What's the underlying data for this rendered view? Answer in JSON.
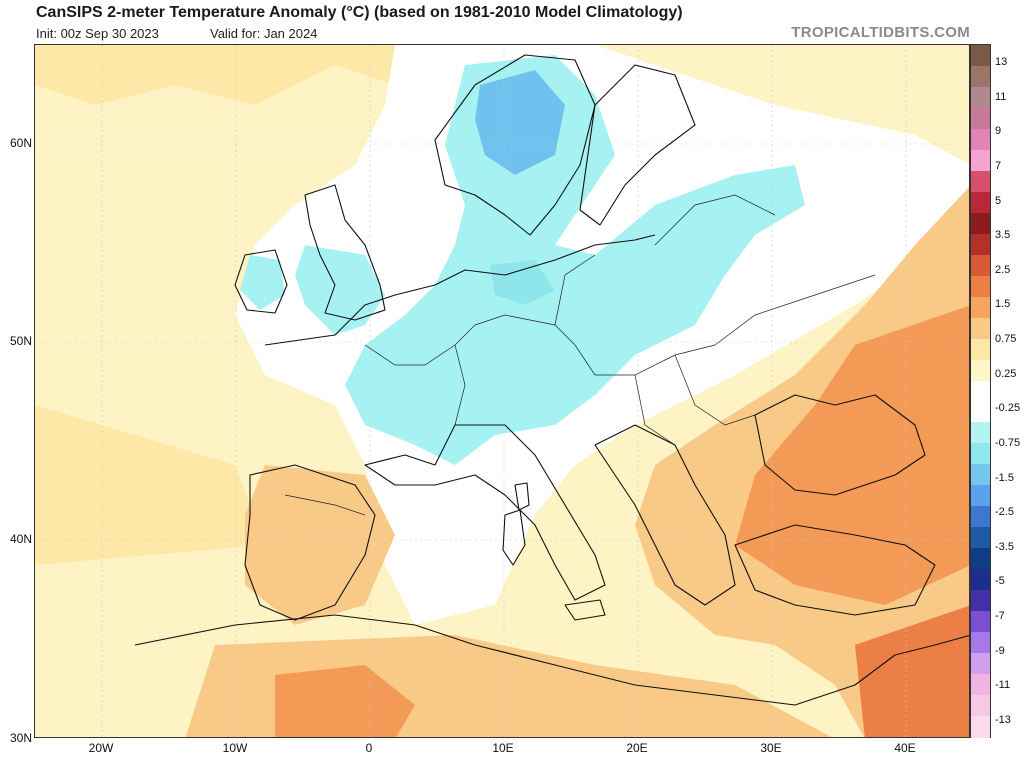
{
  "header": {
    "title": "CanSIPS 2-meter Temperature Anomaly (°C) (based on 1981-2010 Model Climatology)",
    "init": "Init: 00z Sep 30 2023",
    "valid": "Valid for: Jan 2024",
    "brand": "TROPICALTIDBITS.COM"
  },
  "axes": {
    "lat_labels": [
      "60N",
      "50N",
      "40N",
      "30N"
    ],
    "lon_labels": [
      "20W",
      "10W",
      "0",
      "10E",
      "20E",
      "30E",
      "40E"
    ]
  },
  "colorbar": {
    "labels": [
      "13",
      "11",
      "9",
      "7",
      "5",
      "3.5",
      "2.5",
      "1.5",
      "0.75",
      "0.25",
      "-0.25",
      "-0.75",
      "-1.5",
      "-2.5",
      "-3.5",
      "-5",
      "-7",
      "-9",
      "-11",
      "-13"
    ],
    "colors": [
      "#7a5a44",
      "#9c7468",
      "#b08890",
      "#c8799a",
      "#e384b9",
      "#f5a3cf",
      "#d9506c",
      "#b8283a",
      "#8c1b20",
      "#b2322a",
      "#d65a36",
      "#ec7f45",
      "#f6a460",
      "#f9c987",
      "#fde7a6",
      "#fdf6c6",
      "#ffffff",
      "#ffffff",
      "#b4f3f2",
      "#8ee8ec",
      "#74c6ef",
      "#5aa2ea",
      "#3d78cf",
      "#1e5aa6",
      "#0e3d85",
      "#1c2e8a",
      "#4430a6",
      "#7b4fd1",
      "#a57ae8",
      "#cfa0ee",
      "#f1b3e0",
      "#f7c8e6",
      "#fbdcef"
    ]
  }
}
